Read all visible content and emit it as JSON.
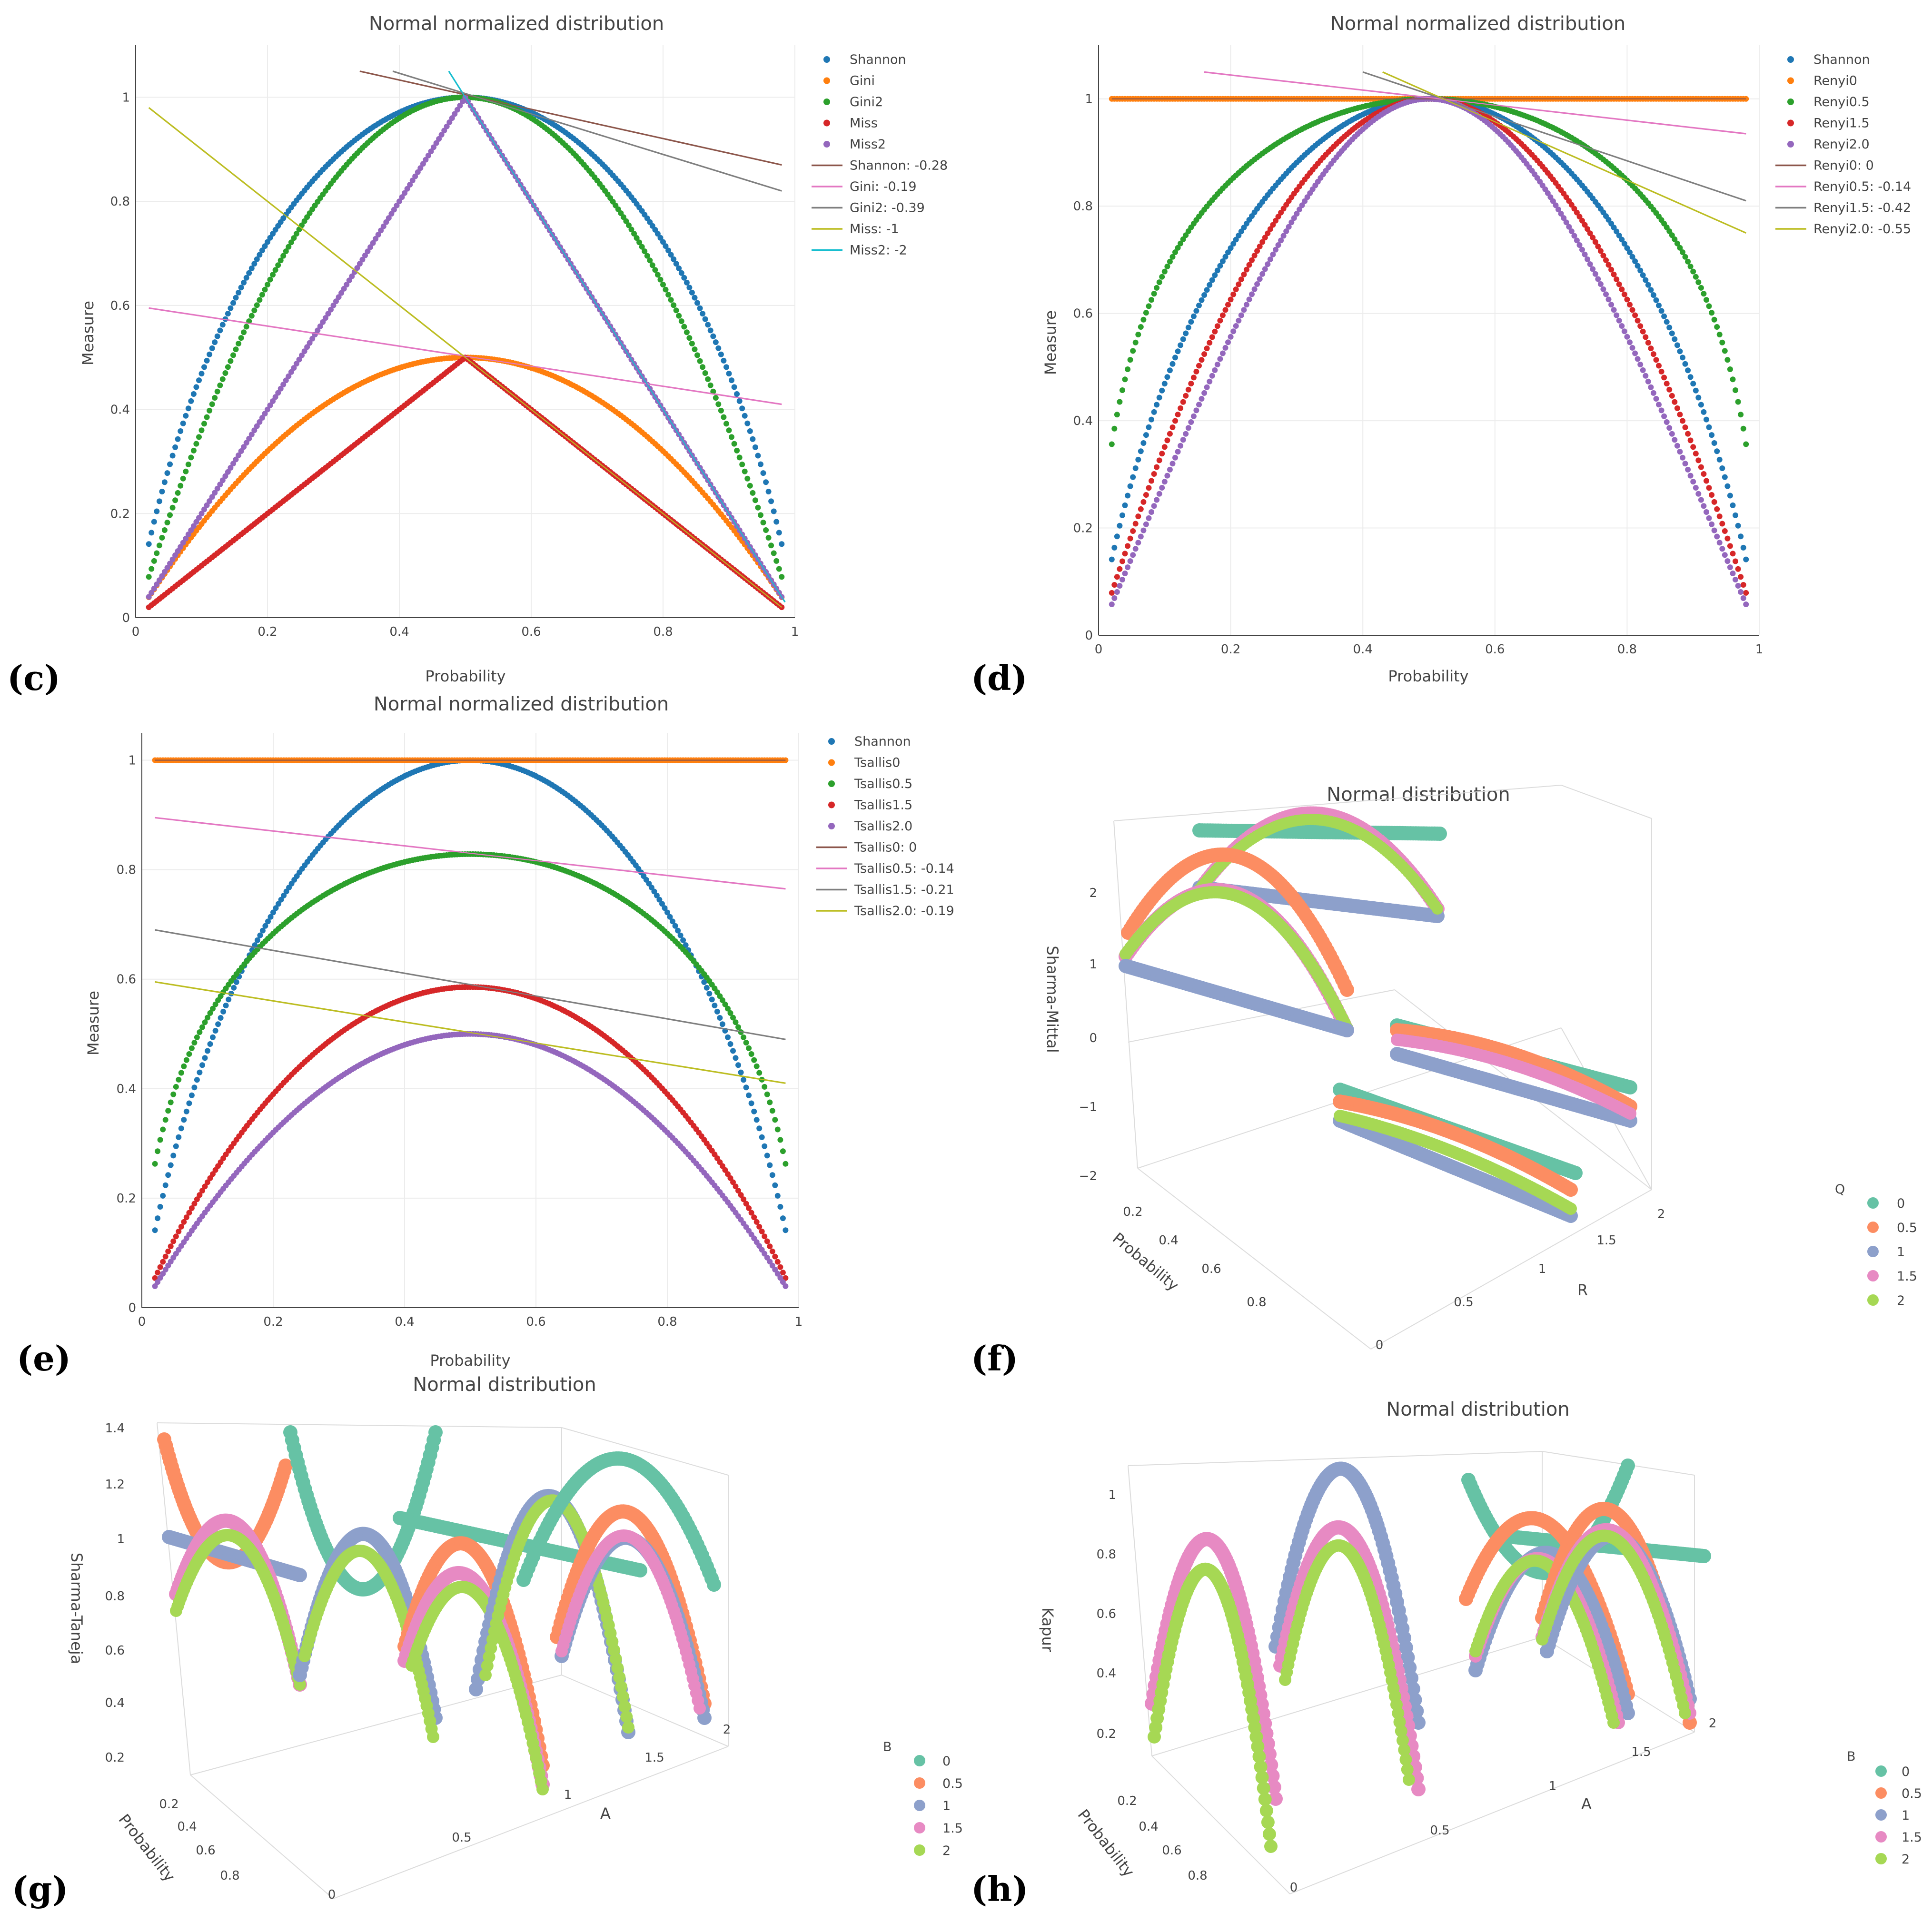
{
  "colors": {
    "blue": "#1f77b4",
    "orange": "#ff7f0e",
    "green": "#2ca02c",
    "red": "#d62728",
    "purple": "#9467bd",
    "brown": "#8c564b",
    "pink": "#e377c2",
    "gray": "#7f7f7f",
    "olive": "#bcbd22",
    "cyan": "#17becf",
    "s_teal": "#66c2a5",
    "s_orange": "#fc8d62",
    "s_blue": "#8da0cb",
    "s_pink": "#e78ac3",
    "s_green": "#a6d854"
  },
  "chart_data": [
    {
      "panel": "(c)",
      "type": "scatter",
      "title": "Normal normalized distribution",
      "xlabel": "Probability",
      "ylabel": "Measure",
      "xlim": [
        0,
        1
      ],
      "ylim": [
        0,
        1.1
      ],
      "xticks": [
        "0",
        "0.2",
        "0.4",
        "0.6",
        "0.8",
        "1"
      ],
      "yticks": [
        "0",
        "0.2",
        "0.4",
        "0.6",
        "0.8",
        "1"
      ],
      "series": [
        {
          "name": "Shannon",
          "kind": "shannon",
          "color": "blue"
        },
        {
          "name": "Gini",
          "kind": "gini",
          "color": "orange"
        },
        {
          "name": "Gini2",
          "kind": "gini2",
          "color": "green"
        },
        {
          "name": "Miss",
          "kind": "miss",
          "color": "red"
        },
        {
          "name": "Miss2",
          "kind": "miss2",
          "color": "purple"
        }
      ],
      "lines": [
        {
          "name": "Shannon: -0.28",
          "x": [
            0.34,
            0.98
          ],
          "y": [
            1.05,
            0.87
          ],
          "color": "brown"
        },
        {
          "name": "Gini: -0.19",
          "x": [
            0.02,
            0.98
          ],
          "y": [
            0.595,
            0.41
          ],
          "color": "pink"
        },
        {
          "name": "Gini2: -0.39",
          "x": [
            0.39,
            0.98
          ],
          "y": [
            1.05,
            0.82
          ],
          "color": "gray"
        },
        {
          "name": "Miss: -1",
          "x": [
            0.02,
            0.98
          ],
          "y": [
            0.98,
            0.02
          ],
          "color": "olive"
        },
        {
          "name": "Miss2: -2",
          "x": [
            0.475,
            0.985
          ],
          "y": [
            1.05,
            0.03
          ],
          "color": "cyan"
        }
      ]
    },
    {
      "panel": "(d)",
      "type": "scatter",
      "title": "Normal normalized distribution",
      "xlabel": "Probability",
      "ylabel": "Measure",
      "xlim": [
        0,
        1
      ],
      "ylim": [
        0,
        1.1
      ],
      "xticks": [
        "0",
        "0.2",
        "0.4",
        "0.6",
        "0.8",
        "1"
      ],
      "yticks": [
        "0",
        "0.2",
        "0.4",
        "0.6",
        "0.8",
        "1"
      ],
      "series": [
        {
          "name": "Shannon",
          "kind": "shannon",
          "color": "blue"
        },
        {
          "name": "Renyi0",
          "kind": "const1",
          "color": "orange"
        },
        {
          "name": "Renyi0.5",
          "kind": "renyi05",
          "color": "green"
        },
        {
          "name": "Renyi1.5",
          "kind": "renyi15",
          "color": "red"
        },
        {
          "name": "Renyi2.0",
          "kind": "renyi2",
          "color": "purple"
        }
      ],
      "lines": [
        {
          "name": "Renyi0: 0",
          "x": [
            0.02,
            0.98
          ],
          "y": [
            1.0,
            1.0
          ],
          "color": "brown"
        },
        {
          "name": "Renyi0.5: -0.14",
          "x": [
            0.16,
            0.98
          ],
          "y": [
            1.05,
            0.935
          ],
          "color": "pink"
        },
        {
          "name": "Renyi1.5: -0.42",
          "x": [
            0.4,
            0.98
          ],
          "y": [
            1.05,
            0.81
          ],
          "color": "gray"
        },
        {
          "name": "Renyi2.0: -0.55",
          "x": [
            0.43,
            0.98
          ],
          "y": [
            1.05,
            0.75
          ],
          "color": "olive"
        }
      ]
    },
    {
      "panel": "(e)",
      "type": "scatter",
      "title": "Normal normalized distribution",
      "xlabel": "Probability",
      "ylabel": "Measure",
      "xlim": [
        0,
        1
      ],
      "ylim": [
        0,
        1.05
      ],
      "xticks": [
        "0",
        "0.2",
        "0.4",
        "0.6",
        "0.8",
        "1"
      ],
      "yticks": [
        "0",
        "0.2",
        "0.4",
        "0.6",
        "0.8",
        "1"
      ],
      "series": [
        {
          "name": "Shannon",
          "kind": "shannon",
          "color": "blue"
        },
        {
          "name": "Tsallis0",
          "kind": "const1",
          "color": "orange"
        },
        {
          "name": "Tsallis0.5",
          "kind": "tsallis05",
          "color": "green"
        },
        {
          "name": "Tsallis1.5",
          "kind": "tsallis15",
          "color": "red"
        },
        {
          "name": "Tsallis2.0",
          "kind": "tsallis2",
          "color": "purple"
        }
      ],
      "lines": [
        {
          "name": "Tsallis0: 0",
          "x": [
            0.02,
            0.98
          ],
          "y": [
            1.0,
            1.0
          ],
          "color": "brown"
        },
        {
          "name": "Tsallis0.5: -0.14",
          "x": [
            0.02,
            0.98
          ],
          "y": [
            0.895,
            0.765
          ],
          "color": "pink"
        },
        {
          "name": "Tsallis1.5: -0.21",
          "x": [
            0.02,
            0.98
          ],
          "y": [
            0.69,
            0.49
          ],
          "color": "gray"
        },
        {
          "name": "Tsallis2.0: -0.19",
          "x": [
            0.02,
            0.98
          ],
          "y": [
            0.595,
            0.41
          ],
          "color": "olive"
        }
      ]
    },
    {
      "panel": "(f)",
      "type": "scatter3d",
      "title": "Normal distribution",
      "zlabel": "Sharma-Mittal",
      "xlabel": "Probability",
      "ylabel": "R",
      "zticks": [
        "2",
        "1",
        "0",
        "−1",
        "−2"
      ],
      "xticks": [
        "0.2",
        "0.4",
        "0.6",
        "0.8"
      ],
      "yticks": [
        "0",
        "0.5",
        "1",
        "1.5",
        "2"
      ],
      "legend_title": "Q",
      "legend": [
        "0",
        "0.5",
        "1",
        "1.5",
        "2"
      ]
    },
    {
      "panel": "(g)",
      "type": "scatter3d",
      "title": "Normal distribution",
      "zlabel": "Sharma-Taneja",
      "xlabel": "Probability",
      "ylabel": "A",
      "zticks": [
        "1.4",
        "1.2",
        "1",
        "0.8",
        "0.6",
        "0.4",
        "0.2"
      ],
      "xticks": [
        "0.2",
        "0.4",
        "0.6",
        "0.8"
      ],
      "yticks": [
        "0",
        "0.5",
        "1",
        "1.5",
        "2"
      ],
      "legend_title": "B",
      "legend": [
        "0",
        "0.5",
        "1",
        "1.5",
        "2"
      ]
    },
    {
      "panel": "(h)",
      "type": "scatter3d",
      "title": "Normal distribution",
      "zlabel": "Kapur",
      "xlabel": "Probability",
      "ylabel": "A",
      "zticks": [
        "1",
        "0.8",
        "0.6",
        "0.4",
        "0.2"
      ],
      "xticks": [
        "0.2",
        "0.4",
        "0.6",
        "0.8"
      ],
      "yticks": [
        "0",
        "0.5",
        "1",
        "1.5",
        "2"
      ],
      "legend_title": "B",
      "legend": [
        "0",
        "0.5",
        "1",
        "1.5",
        "2"
      ]
    }
  ]
}
